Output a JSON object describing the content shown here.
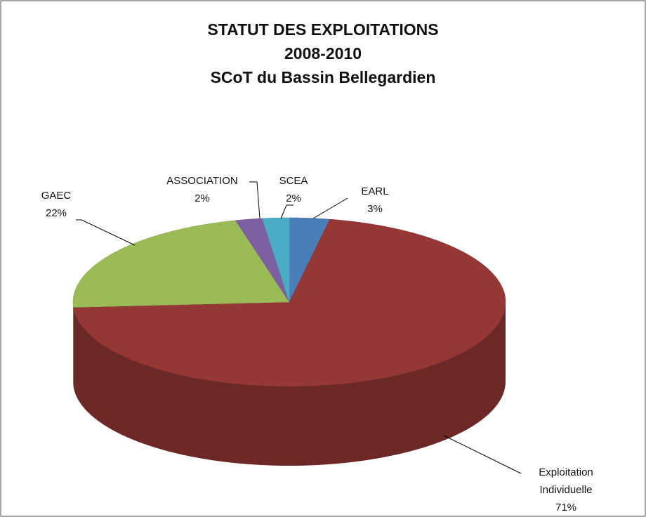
{
  "chart_data": {
    "type": "pie3d",
    "title": [
      "STATUT DES EXPLOITATIONS",
      "2008-2010",
      "SCoT du Bassin Bellegardien"
    ],
    "categories": [
      "EARL",
      "Exploitation Individuelle",
      "GAEC",
      "ASSOCIATION",
      "SCEA"
    ],
    "values": [
      3,
      71,
      22,
      2,
      2
    ],
    "value_labels": [
      "3%",
      "71%",
      "22%",
      "2%",
      "2%"
    ],
    "colors": [
      "#4a7ebb",
      "#953735",
      "#9bbb59",
      "#7d60a0",
      "#4bacc6"
    ]
  }
}
